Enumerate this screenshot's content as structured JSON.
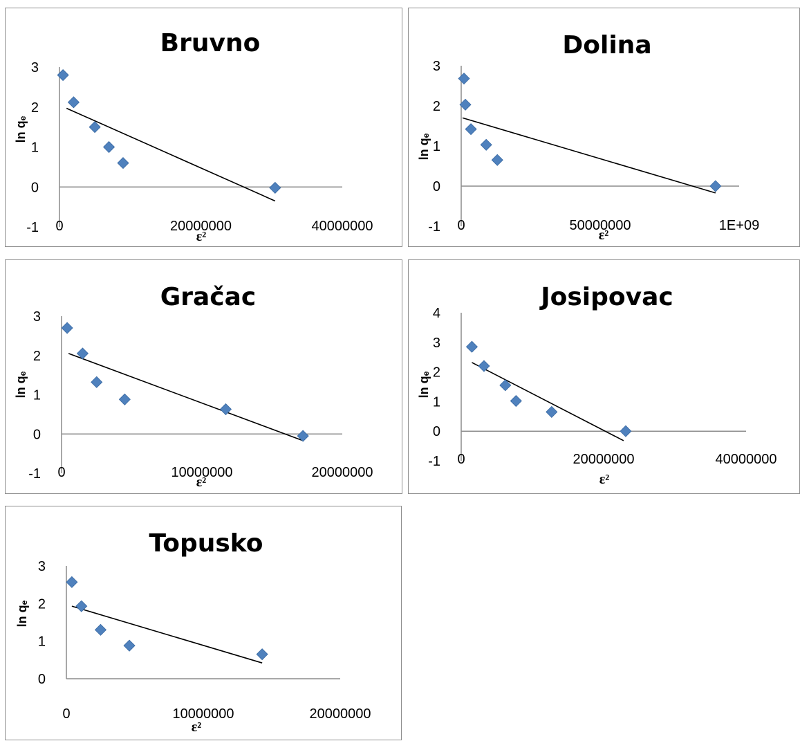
{
  "chart_data": [
    {
      "type": "scatter",
      "title": "Bruvno",
      "xlabel": "ε²",
      "ylabel": "ln qₑ",
      "xlim": [
        0,
        40000000
      ],
      "ylim": [
        -1,
        3
      ],
      "xticks": [
        "0",
        "20000000",
        "40000000"
      ],
      "yticks": [
        "-1",
        "0",
        "1",
        "2",
        "3"
      ],
      "points": [
        {
          "x": 500000,
          "y": 2.8
        },
        {
          "x": 2000000,
          "y": 2.12
        },
        {
          "x": 5000000,
          "y": 1.5
        },
        {
          "x": 7000000,
          "y": 1.0
        },
        {
          "x": 9000000,
          "y": 0.6
        },
        {
          "x": 30500000,
          "y": -0.02
        }
      ],
      "trendline": {
        "x": [
          1000000,
          30500000
        ],
        "y": [
          1.97,
          -0.35
        ]
      }
    },
    {
      "type": "scatter",
      "title": "Dolina",
      "xlabel": "ε²",
      "ylabel": "ln qₑ",
      "xlim": [
        0,
        1000000000
      ],
      "ylim": [
        -1,
        3
      ],
      "xticks": [
        "0",
        "50000000",
        "1E+09"
      ],
      "yticks": [
        "-1",
        "0",
        "1",
        "2",
        "3"
      ],
      "points": [
        {
          "x": 10000000,
          "y": 2.68
        },
        {
          "x": 15000000,
          "y": 2.03
        },
        {
          "x": 35000000,
          "y": 1.42
        },
        {
          "x": 90000000,
          "y": 1.03
        },
        {
          "x": 130000000,
          "y": 0.65
        },
        {
          "x": 915000000,
          "y": 0.0
        }
      ],
      "trendline": {
        "x": [
          5000000,
          915000000
        ],
        "y": [
          1.7,
          -0.17
        ]
      }
    },
    {
      "type": "scatter",
      "title": "Gračac",
      "xlabel": "ε²",
      "ylabel": "ln qₑ",
      "xlim": [
        0,
        20000000
      ],
      "ylim": [
        -1,
        3
      ],
      "xticks": [
        "0",
        "10000000",
        "20000000"
      ],
      "yticks": [
        "-1",
        "0",
        "1",
        "2",
        "3"
      ],
      "points": [
        {
          "x": 400000,
          "y": 2.7
        },
        {
          "x": 1500000,
          "y": 2.05
        },
        {
          "x": 2500000,
          "y": 1.32
        },
        {
          "x": 4500000,
          "y": 0.88
        },
        {
          "x": 11700000,
          "y": 0.63
        },
        {
          "x": 17200000,
          "y": -0.05
        }
      ],
      "trendline": {
        "x": [
          500000,
          17200000
        ],
        "y": [
          2.05,
          -0.17
        ]
      }
    },
    {
      "type": "scatter",
      "title": "Josipovac",
      "xlabel": "ε²",
      "ylabel": "ln qₑ",
      "xlim": [
        0,
        40000000
      ],
      "ylim": [
        -1,
        4
      ],
      "xticks": [
        "0",
        "20000000",
        "40000000"
      ],
      "yticks": [
        "-1",
        "0",
        "1",
        "2",
        "3",
        "4"
      ],
      "points": [
        {
          "x": 1500000,
          "y": 2.85
        },
        {
          "x": 3200000,
          "y": 2.2
        },
        {
          "x": 6200000,
          "y": 1.55
        },
        {
          "x": 7700000,
          "y": 1.02
        },
        {
          "x": 12700000,
          "y": 0.65
        },
        {
          "x": 23100000,
          "y": 0.0
        }
      ],
      "trendline": {
        "x": [
          1500000,
          22800000
        ],
        "y": [
          2.32,
          -0.32
        ]
      }
    },
    {
      "type": "scatter",
      "title": "Topusko",
      "xlabel": "ε²",
      "ylabel": "ln qₑ",
      "xlim": [
        0,
        20000000
      ],
      "ylim": [
        0,
        3
      ],
      "xticks": [
        "0",
        "10000000",
        "20000000"
      ],
      "yticks": [
        "0",
        "1",
        "2",
        "3"
      ],
      "points": [
        {
          "x": 400000,
          "y": 2.57
        },
        {
          "x": 1100000,
          "y": 1.93
        },
        {
          "x": 2500000,
          "y": 1.3
        },
        {
          "x": 4600000,
          "y": 0.88
        },
        {
          "x": 14300000,
          "y": 0.65
        }
      ],
      "trendline": {
        "x": [
          400000,
          14300000
        ],
        "y": [
          1.93,
          0.42
        ]
      }
    }
  ]
}
